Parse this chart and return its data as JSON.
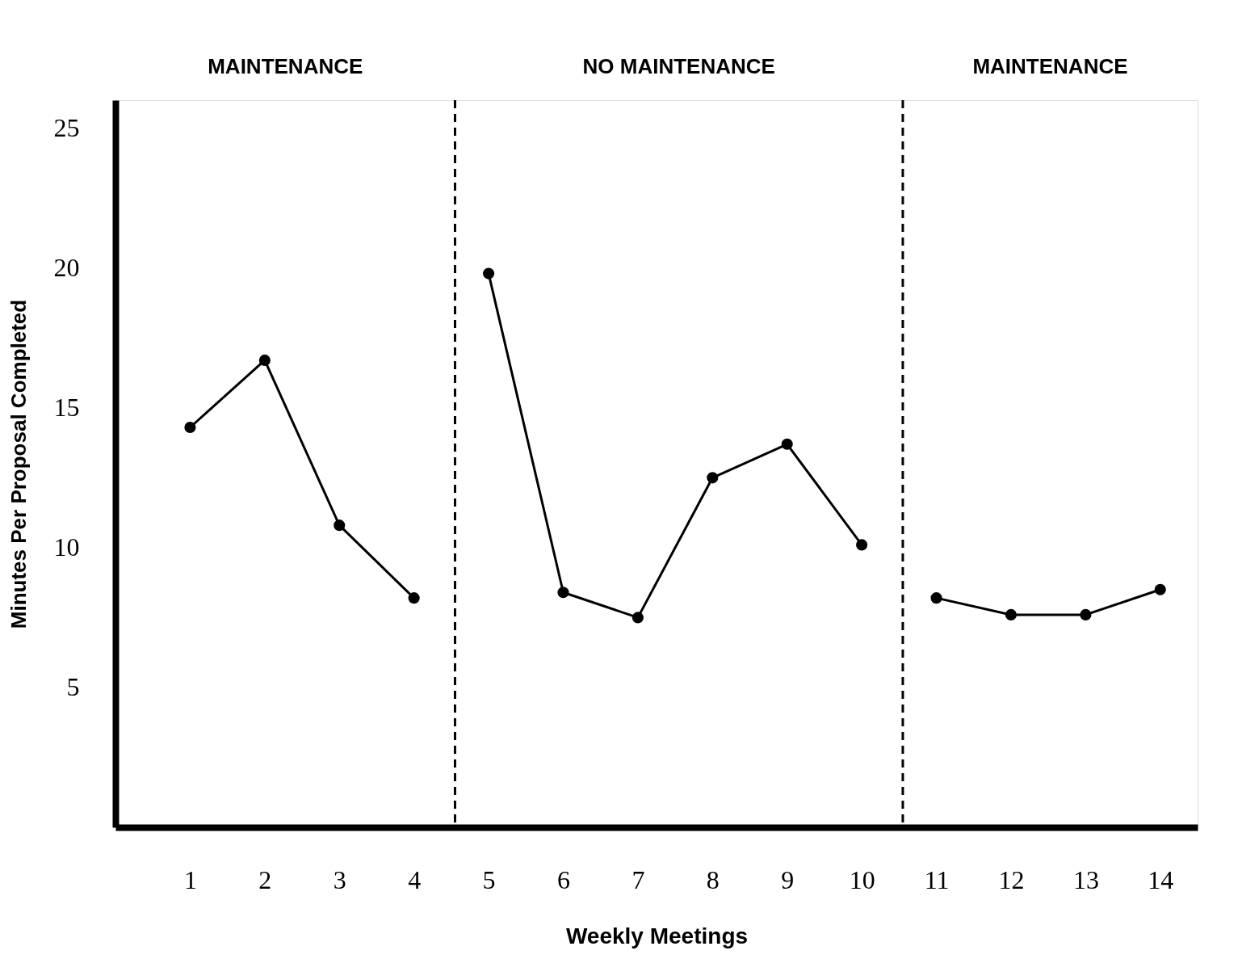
{
  "chart_data": {
    "type": "line",
    "xlabel": "Weekly Meetings",
    "ylabel": "Minutes Per Proposal Completed",
    "xlim": [
      0,
      14.5
    ],
    "xticks": [
      1,
      2,
      3,
      4,
      5,
      6,
      7,
      8,
      9,
      10,
      11,
      12,
      13,
      14
    ],
    "ylim": [
      0,
      26
    ],
    "yticks": [
      5,
      10,
      15,
      20,
      25
    ],
    "series": [
      {
        "color": "#000000",
        "x": [
          1,
          2,
          3,
          4
        ],
        "values": [
          14.3,
          16.7,
          10.8,
          8.2
        ]
      },
      {
        "color": "#000000",
        "x": [
          5,
          6,
          7,
          8,
          9,
          10
        ],
        "values": [
          19.8,
          8.4,
          7.5,
          12.5,
          13.7,
          10.1
        ]
      },
      {
        "color": "#000000",
        "x": [
          11,
          12,
          13,
          14
        ],
        "values": [
          8.2,
          7.6,
          7.6,
          8.5
        ]
      }
    ],
    "ref_lines": [
      {
        "axis": "x",
        "value": 4.55,
        "color": "#000000",
        "line_style": "dashed"
      },
      {
        "axis": "x",
        "value": 10.55,
        "color": "#000000",
        "line_style": "dashed"
      }
    ],
    "annotations": [
      "MAINTENANCE",
      "NO MAINTENANCE",
      "MAINTENANCE"
    ],
    "marker": "circle",
    "line_style": "solid",
    "grid": false
  }
}
